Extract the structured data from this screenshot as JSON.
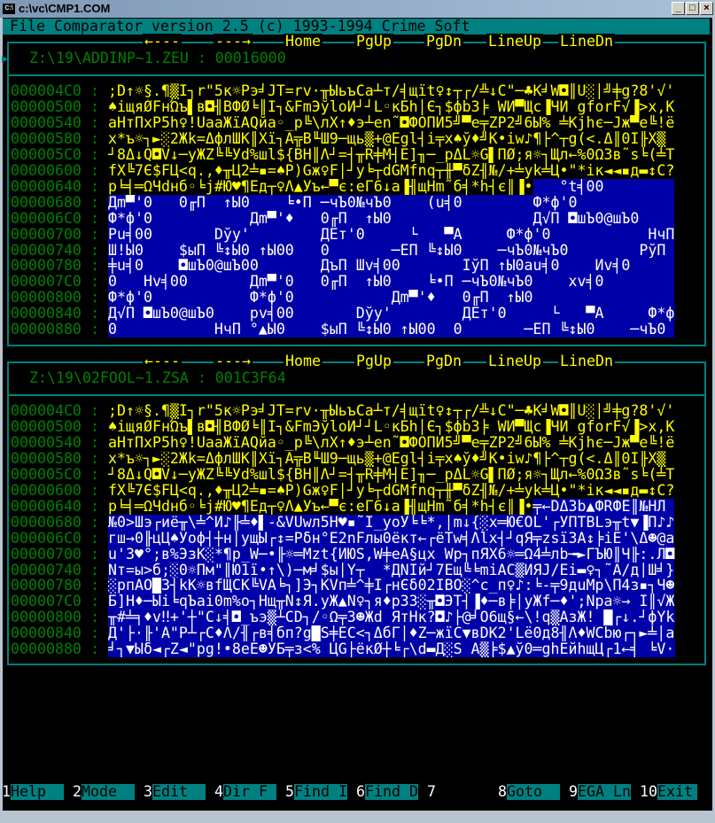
{
  "window": {
    "title": "c:\\vc\\CMP1.COM",
    "icon": "console-icon",
    "buttons": [
      "minimize",
      "maximize",
      "close"
    ]
  },
  "header": {
    "title": "File Comparator version 2.5 (c) 1993-1994 Crime Soft"
  },
  "nav": [
    "←---",
    "---→",
    "Home",
    "PgUp",
    "PgDn",
    "LineUp",
    "LineDn"
  ],
  "colors": {
    "teal": "#008080",
    "address": "#008000",
    "text": "#ffff00",
    "diff_bg": "#0000a8",
    "diff_text": "#ffffff"
  },
  "panels": [
    {
      "file": "Z:\\19\\ADDINP~1.ZEU : 00016000",
      "active": true,
      "rows": [
        {
          "addr": "000004C0",
          "same": ";D↑☼§.¶▒Ï┐r\"5к☼Pэ╛JT=rv·╥ЫьъCa┴т/╡щït♀↕┬┌/╩↓C\"─♣K╛W◘║U░│╝╪g?8'√'",
          "diff": ""
        },
        {
          "addr": "00000500",
          "same": "♠iщяǾFнΏъ▌в◘╢BФǾ╘║I┐&FmЭўloЙ┘┘L◦кБh│Є┐$фbЗ╞ WИ▀Щс▐ЧЙ gforF√▐>x,K",
          "diff": ""
        },
        {
          "addr": "00000540",
          "same": "aHтПxP5h♀!UaaЖïAQйa◦_p╚\\лX↑♦э┴en˜◘ФОПИ5╝▀e╤ZP2╝6Ы% ╧Kjhє─Jж▀e╚!ë",
          "diff": ""
        },
        {
          "addr": "00000580",
          "same": "x*ъ☼┐►░2Жk=ΔфлШK║Xï┐Ā╦B╙Ш9─щь▒+@Egl┤i╤x♠ў♦╝K•iw♪¶├^┬g(<.Δ║0Ï╟X▒",
          "diff": ""
        },
        {
          "addr": "000005C0",
          "same": "┘8Δ↓Q◘V↓─yЖZ╚╚Ўd%шl${BH║Λ┘=┤╥R╪M┤Ё]╖─_pΔL☼G▌ПǾ;я☼┐Щл←%0Ω3в˜s╘(╧T",
          "diff": ""
        },
        {
          "addr": "00000600",
          "same": "fX╚7Є$FЦ<q.,♦╥Ц2╧▪=♠P)Gж♀F│┘y╘┬dGMfnq┬╫▀δZ╢№/+╧yk╧Ц•\"*iк◄◄▪д▬↕C?",
          "diff": ""
        },
        {
          "addr": "00000640",
          "same": "p╘╡═ΩЧdнб◦╘j#Ю♥¶Eд┬♀Λ▲Ўъ←▀є:eГ6↓a▐╢щHm˜б╡*h┤є║▐•",
          "diff": "   °t╡00"
        },
        {
          "addr": "00000680",
          "same": "",
          "diff": "Дm▀'0   0╓П  ↑Ы0    ╘•П ─чЪ0№чЪ0    (u╡0        Ф*ф'0"
        },
        {
          "addr": "000006C0",
          "same": "",
          "diff": "Ф*ф'0           Дm▀'♦   0╓П  ↑Ы0                Д√П ◘шЪ0@шЪ0"
        },
        {
          "addr": "00000700",
          "same": "",
          "diff": "Pu╡00       Dўy'        ДЁт'0     └   ▀A     Ф*ф'0           HчП"
        },
        {
          "addr": "00000740",
          "same": "",
          "diff": "Ш!Ы0    $ыП ╚↕Ы0 ↑Ы00   0       ─ЁП ╚↕Ы0    ─чЪ0№чЪ0        PўП"
        },
        {
          "addr": "00000780",
          "same": "",
          "diff": "╪u╡0    ◘шЪ0@шЪ00       ДъП Шv╡00       ÏўП ↑Ы0au╡0    Иv╡0"
        },
        {
          "addr": "000007C0",
          "same": "",
          "diff": "0   Hv╡00       Дm▀'0   0╓П  ↑Ы0    ╘•П ─чЪ0№чЪ0    xv╡0"
        },
        {
          "addr": "00000800",
          "same": "",
          "diff": "Ф*ф'0           Ф*ф'0           Дm▀'♦   0╓П  ↑Ы0"
        },
        {
          "addr": "00000840",
          "same": "",
          "diff": "Д√П ◘шЪ0@шЪ0    pv╡00       Dўy'        ДЁт'0     └   ▀A     Ф*ф'"
        },
        {
          "addr": "00000880",
          "same": "",
          "diff": "0           HчП °▲Ы0    $ыП ╚↕Ы0 ↑Ы00  0       ─ЁП ╚↕Ы0    ─чЪ0"
        }
      ]
    },
    {
      "file": "Z:\\19\\02FOOL~1.ZSA : 001C3F64",
      "active": false,
      "rows": [
        {
          "addr": "000004C0",
          "same": ";D↑☼§.¶▒Ï┐r\"5к☼Pэ╛JT=rv·╥ЫьъCa┴т/╡щït♀↕┬┌/╩↓C\"─♣K╛W◘║U░│╝╪g?8'√'",
          "diff": ""
        },
        {
          "addr": "00000500",
          "same": "♠iщяǾFнΏъ▌в◘╢BФǾ╘║I┐&FmЭўloЙ┘┘L◦кБh│Є┐$фbЗ╞ WИ▀Щс▐ЧЙ gforF√▐>x,K",
          "diff": ""
        },
        {
          "addr": "00000540",
          "same": "aHтПxP5h♀!UaaЖïAQйa◦_p╚\\лX↑♦э┴en˜◘ФОПИ5╝▀e╤ZP2╝6Ы% ╧Kjhє─Jж▀e╚!ë",
          "diff": ""
        },
        {
          "addr": "00000580",
          "same": "x*ъ☼┐►░2Жk=ΔфлШK║Xï┐Ā╦B╙Ш9─щь▒+@Egl┤i╤x♠ў♦╝K•iw♪¶├^┬g(<.Δ║0Ï╟X▒",
          "diff": ""
        },
        {
          "addr": "000005C0",
          "same": "┘8Δ↓Q◘V↓─yЖZ╚╚Ўd%шl${BH║Λ┘=┤╥R╪M┤Ё]╖─_pΔL☼G▌ПǾ;я☼┐Щл←%0Ω3в˜s╘(╧T",
          "diff": ""
        },
        {
          "addr": "00000600",
          "same": "fX╚7Є$FЦ<q.,♦╥Ц2╧▪=♠P)Gж♀F│┘y╘┬dGMfnq┬╫▀δZ╢№/+╧yk╧Ц•\"*iк◄◄▪д▬↕C?",
          "diff": ""
        },
        {
          "addr": "00000640",
          "same": "p╘╡═ΩЧdнб◦╘j#Ю♥¶Eд┬♀Λ▲Ўъ←▀є:eГ6↓a▐╢щHm˜б╡*h┤є║▐•",
          "diff": "╤←DΔЗb▲ФRФЁ║№HЛ"
        },
        {
          "addr": "00000680",
          "same": "",
          "diff": "№0>Шэ┌иё╥\\╧^Й♪╟╧♦▌-&VUwл5H♥▪˜Ï_yoЎ╘╘*,│m↓{░x═Ю€OL'┌УПТBLэ╥t▼▐П♪♪"
        },
        {
          "addr": "000006C0",
          "same": "",
          "diff": "гш→0╟цЦ♠Уоф┤┼н│ущЫ┌↕=Pδн°E2nFлы0ёкт←┌ёTw╡Λlx┤┘qЯ╤zsïЗA↕╞iE'\\Δ☻@a"
        },
        {
          "addr": "00000700",
          "same": "",
          "diff": "u'З♥°;в%ЭзK░*¶p_W─•╟☼═Mzt{ЙЮS,W╪eA§цx Wp┐пЯХ6☼═Ω4╧лb╼►ГЪЮ║Ч╟:.Л◘"
        },
        {
          "addr": "00000740",
          "same": "",
          "diff": "Nт=ы>б;░0☼Пм\"║Ю1ï•↑\\)─м╛$ы│Y┬  *ДNIй┘7Eщ╚╘miAC▒ИЯJ/Ёi▬♀┐˜A/д│Ш╛}"
        },
        {
          "addr": "00000780",
          "same": "",
          "diff": "░рпAO█З┤kK☼вfЩCK╚VA╘┐]Э┐KVп╧^╪Ï┌нЄδ02IBO░^c_п♀♪:╘-╤9дuMp\\П4з▪┐Ч☻"
        },
        {
          "addr": "000007C0",
          "same": "",
          "diff": "Б]H♦─Ыi╘qЪai0m%o┐Hщ╥N↕Я.yЖ▲N♀┐я♦p3З░╥◘ЭT┤▐♦─в╞│yЖf─♦';Npa☼→ Ï║√Ж"
        },
        {
          "addr": "00000800",
          "same": "",
          "diff": "╥#╧╕♦v‼+'┼\"C↓╡◘_ъэ▒┴CD┐/◦Ω╤3☻Жd ЯтHк?◘♪├@╛O6щ§←\\!q▒AзЖ! █┌↓.┘фYkM"
        },
        {
          "addr": "00000840",
          "same": "",
          "diff": "Д'├·╟'A\"P┴┌C♦Λ/╢┌в╡бп?g█S╪EC<┐ΔбГ│♦Z─жïC▼вDK2'Lë0д8╢Λ♦WCbю┌┐►╧│a"
        },
        {
          "addr": "00000880",
          "same": "",
          "diff": "╛┐▼Ыδ◄┌Z◄\"pg!•8eE☻УБ╤з<% ЦG├ёкǾ┼╘┌\\d▬Д░S A▒╞$▲ў0═ghEйhщЦ┌1←╡ ╘V·Ω"
        }
      ]
    }
  ],
  "fkeys": [
    {
      "n": "1",
      "label": "Help"
    },
    {
      "n": "2",
      "label": "Mode"
    },
    {
      "n": "3",
      "label": "Edit"
    },
    {
      "n": "4",
      "label": "Dir F"
    },
    {
      "n": "5",
      "label": "Find I"
    },
    {
      "n": "6",
      "label": "Find D"
    },
    {
      "n": "7",
      "label": ""
    },
    {
      "n": "8",
      "label": "Goto"
    },
    {
      "n": "9",
      "label": "EGA Ln"
    },
    {
      "n": "10",
      "label": "Exit"
    }
  ]
}
